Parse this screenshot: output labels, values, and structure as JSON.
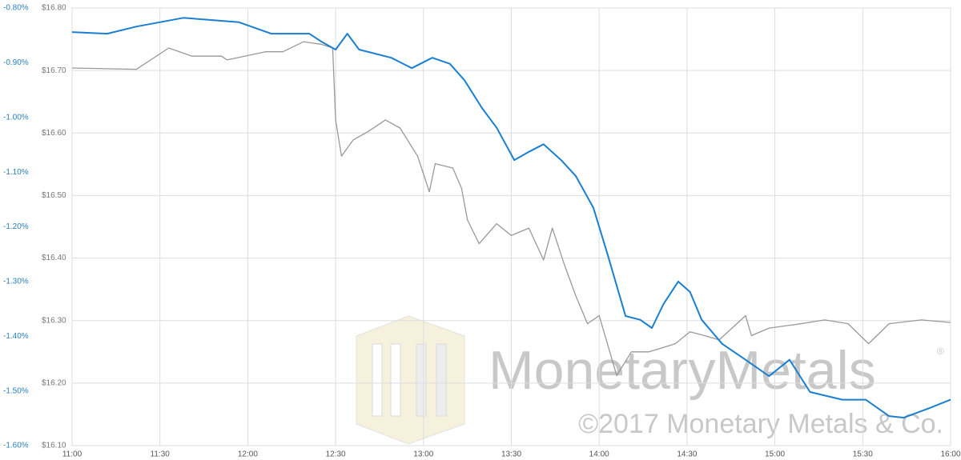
{
  "chart_data": {
    "type": "line",
    "xlim": [
      660,
      960
    ],
    "xticks": [
      {
        "value": 660,
        "label": "11:00"
      },
      {
        "value": 690,
        "label": "11:30"
      },
      {
        "value": 720,
        "label": "12:00"
      },
      {
        "value": 750,
        "label": "12:30"
      },
      {
        "value": 780,
        "label": "13:00"
      },
      {
        "value": 810,
        "label": "13:30"
      },
      {
        "value": 840,
        "label": "14:00"
      },
      {
        "value": 870,
        "label": "14:30"
      },
      {
        "value": 900,
        "label": "15:00"
      },
      {
        "value": 930,
        "label": "15:30"
      },
      {
        "value": 960,
        "label": "16:00"
      }
    ],
    "ylim": [
      16.1,
      16.8
    ],
    "yticks": [
      {
        "value": 16.1,
        "label": "$16.10"
      },
      {
        "value": 16.2,
        "label": "$16.20"
      },
      {
        "value": 16.3,
        "label": "$16.30"
      },
      {
        "value": 16.4,
        "label": "$16.40"
      },
      {
        "value": 16.5,
        "label": "$16.50"
      },
      {
        "value": 16.6,
        "label": "$16.60"
      },
      {
        "value": 16.7,
        "label": "$16.70"
      },
      {
        "value": 16.8,
        "label": "$16.80"
      }
    ],
    "y2lim": [
      -1.6,
      -0.8
    ],
    "y2ticks": [
      {
        "value": -1.6,
        "label": "-1.60%"
      },
      {
        "value": -1.5,
        "label": "-1.50%"
      },
      {
        "value": -1.4,
        "label": "-1.40%"
      },
      {
        "value": -1.3,
        "label": "-1.30%"
      },
      {
        "value": -1.2,
        "label": "-1.20%"
      },
      {
        "value": -1.1,
        "label": "-1.10%"
      },
      {
        "value": -1.0,
        "label": "-1.00%"
      },
      {
        "value": -0.9,
        "label": "-0.90%"
      },
      {
        "value": -0.8,
        "label": "-0.80%"
      }
    ],
    "grid": true,
    "series": [
      {
        "color": "#999999",
        "x": [
          660,
          682,
          693,
          701,
          711,
          713,
          726,
          732,
          739,
          745,
          749,
          750,
          752,
          756,
          761,
          767,
          772,
          778,
          782,
          784,
          790,
          793,
          795,
          799,
          805,
          810,
          816,
          821,
          824,
          828,
          832,
          836,
          840,
          846,
          851,
          857,
          862,
          866,
          871,
          876,
          881,
          887,
          890,
          892,
          898,
          909,
          917,
          925,
          932,
          939,
          950,
          960
        ],
        "values": [
          16.704,
          16.702,
          16.736,
          16.723,
          16.723,
          16.717,
          16.73,
          16.73,
          16.746,
          16.742,
          16.736,
          16.621,
          16.563,
          16.589,
          16.602,
          16.621,
          16.608,
          16.563,
          16.506,
          16.551,
          16.544,
          16.512,
          16.461,
          16.423,
          16.455,
          16.436,
          16.448,
          16.397,
          16.448,
          16.391,
          16.34,
          16.295,
          16.308,
          16.212,
          16.25,
          16.25,
          16.257,
          16.263,
          16.282,
          16.276,
          16.269,
          16.295,
          16.308,
          16.276,
          16.288,
          16.295,
          16.301,
          16.295,
          16.263,
          16.295,
          16.301,
          16.297
        ]
      },
      {
        "color": "#1a7fd0",
        "axis": "y2",
        "x": [
          660,
          672,
          682,
          698,
          717,
          728,
          741,
          745,
          750,
          754,
          758,
          769,
          776,
          783,
          789,
          794,
          800,
          805,
          811,
          816,
          821,
          827,
          832,
          838,
          843,
          849,
          854,
          858,
          862,
          867,
          871,
          875,
          882,
          890,
          898,
          905,
          912,
          923,
          931,
          939,
          944,
          953,
          960
        ],
        "values": [
          -0.844,
          -0.847,
          -0.834,
          -0.818,
          -0.826,
          -0.847,
          -0.847,
          -0.861,
          -0.876,
          -0.847,
          -0.876,
          -0.891,
          -0.91,
          -0.891,
          -0.902,
          -0.932,
          -0.983,
          -1.019,
          -1.078,
          -1.063,
          -1.049,
          -1.078,
          -1.107,
          -1.165,
          -1.253,
          -1.363,
          -1.37,
          -1.385,
          -1.341,
          -1.3,
          -1.319,
          -1.37,
          -1.414,
          -1.443,
          -1.473,
          -1.443,
          -1.502,
          -1.516,
          -1.516,
          -1.546,
          -1.549,
          -1.531,
          -1.516
        ]
      }
    ],
    "watermark": "MonetaryMetals",
    "watermark_mark": "®",
    "copyright": "©2017 Monetary Metals & Co."
  }
}
